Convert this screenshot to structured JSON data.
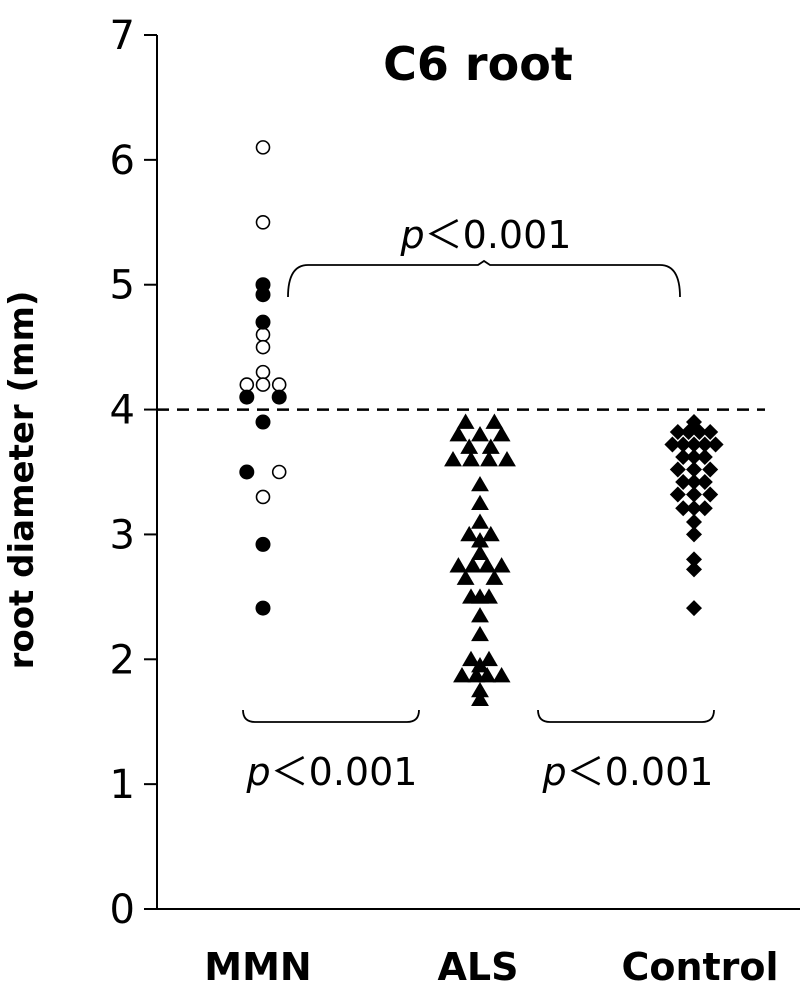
{
  "chart_data": {
    "type": "scatter",
    "title": "C6 root",
    "xlabel": "",
    "ylabel": "root diameter (mm)",
    "ylim": [
      0,
      7
    ],
    "yticks": [
      "0",
      "1",
      "2",
      "3",
      "4",
      "5",
      "6",
      "7"
    ],
    "categories": [
      "MMN",
      "ALS",
      "Control"
    ],
    "reference_line": {
      "y": 4.0,
      "style": "dashed"
    },
    "annotations": [
      {
        "text_p": "p",
        "text_rest": "＜0.001",
        "between": [
          "MMN",
          "Control"
        ],
        "position": "above"
      },
      {
        "text_p": "p",
        "text_rest": "＜0.001",
        "between": [
          "MMN",
          "ALS"
        ],
        "position": "below"
      },
      {
        "text_p": "p",
        "text_rest": "＜0.001",
        "between": [
          "ALS",
          "Control"
        ],
        "position": "below"
      }
    ],
    "series": [
      {
        "category": "MMN",
        "marker": "circle-open",
        "points": [
          [
            0,
            6.1
          ],
          [
            0,
            5.5
          ],
          [
            0,
            4.6
          ],
          [
            0,
            4.5
          ],
          [
            0,
            4.3
          ],
          [
            -0.9,
            4.2
          ],
          [
            0.9,
            4.2
          ],
          [
            0,
            4.2
          ],
          [
            0.9,
            3.5
          ],
          [
            0,
            3.3
          ]
        ]
      },
      {
        "category": "MMN",
        "marker": "circle-filled",
        "points": [
          [
            0,
            5.0
          ],
          [
            0,
            4.92
          ],
          [
            0,
            4.7
          ],
          [
            -0.9,
            4.1
          ],
          [
            0.9,
            4.1
          ],
          [
            0,
            3.9
          ],
          [
            -0.9,
            3.5
          ],
          [
            0,
            2.92
          ],
          [
            0,
            2.41
          ]
        ]
      },
      {
        "category": "ALS",
        "marker": "triangle-filled",
        "points": [
          [
            -0.8,
            3.9
          ],
          [
            0.8,
            3.9
          ],
          [
            -1.2,
            3.8
          ],
          [
            0,
            3.8
          ],
          [
            1.2,
            3.8
          ],
          [
            -0.6,
            3.7
          ],
          [
            0.6,
            3.7
          ],
          [
            -1.5,
            3.6
          ],
          [
            -0.5,
            3.6
          ],
          [
            0.5,
            3.6
          ],
          [
            1.5,
            3.6
          ],
          [
            0,
            3.4
          ],
          [
            0,
            3.25
          ],
          [
            0,
            3.1
          ],
          [
            0,
            2.95
          ],
          [
            -0.6,
            3.0
          ],
          [
            0.6,
            3.0
          ],
          [
            0,
            2.85
          ],
          [
            -1.2,
            2.75
          ],
          [
            -0.4,
            2.75
          ],
          [
            0.4,
            2.75
          ],
          [
            1.2,
            2.75
          ],
          [
            -0.8,
            2.65
          ],
          [
            0.8,
            2.65
          ],
          [
            -0.5,
            2.5
          ],
          [
            0,
            2.5
          ],
          [
            0.5,
            2.5
          ],
          [
            0,
            2.35
          ],
          [
            0,
            2.2
          ],
          [
            -0.5,
            2.0
          ],
          [
            0.5,
            2.0
          ],
          [
            0,
            1.95
          ],
          [
            -1.0,
            1.87
          ],
          [
            -0.2,
            1.87
          ],
          [
            0.4,
            1.87
          ],
          [
            1.2,
            1.87
          ],
          [
            0,
            1.75
          ],
          [
            0,
            1.68
          ]
        ]
      },
      {
        "category": "Control",
        "marker": "diamond-filled",
        "points": [
          [
            0,
            3.9
          ],
          [
            -0.9,
            3.82
          ],
          [
            -0.3,
            3.82
          ],
          [
            0.3,
            3.82
          ],
          [
            0.9,
            3.82
          ],
          [
            -1.2,
            3.72
          ],
          [
            -0.6,
            3.72
          ],
          [
            0,
            3.72
          ],
          [
            0.6,
            3.72
          ],
          [
            1.2,
            3.72
          ],
          [
            -0.6,
            3.62
          ],
          [
            0,
            3.62
          ],
          [
            0.6,
            3.62
          ],
          [
            -0.9,
            3.52
          ],
          [
            0,
            3.52
          ],
          [
            0.9,
            3.52
          ],
          [
            -0.6,
            3.42
          ],
          [
            0,
            3.42
          ],
          [
            0.6,
            3.42
          ],
          [
            -0.9,
            3.32
          ],
          [
            0,
            3.32
          ],
          [
            0.9,
            3.32
          ],
          [
            -0.6,
            3.21
          ],
          [
            0,
            3.21
          ],
          [
            0.6,
            3.21
          ],
          [
            0,
            3.1
          ],
          [
            0,
            3.0
          ],
          [
            0,
            2.8
          ],
          [
            0,
            2.72
          ],
          [
            0,
            2.41
          ]
        ]
      }
    ]
  }
}
